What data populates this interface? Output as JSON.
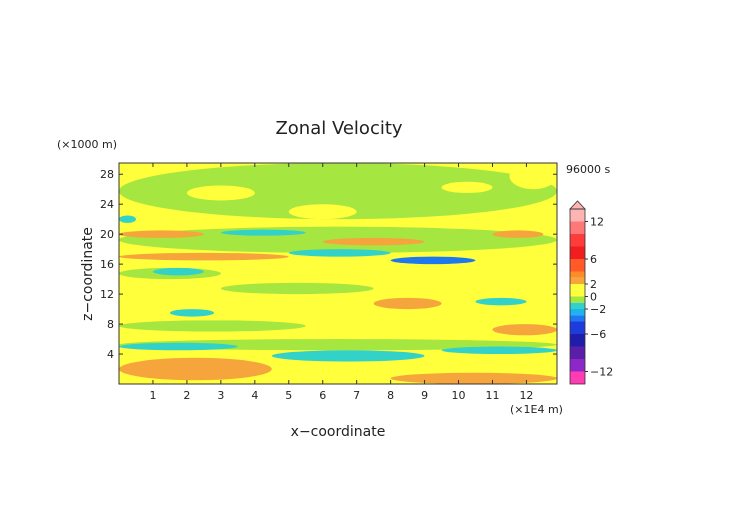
{
  "chart_data": {
    "type": "heatmap",
    "title": "Zonal Velocity",
    "xlabel": "x−coordinate",
    "ylabel": "z−coordinate",
    "x_unit": "(×1E4 m)",
    "y_unit": "(×1000 m)",
    "time_label": "96000 s",
    "xlim": [
      0,
      12.9
    ],
    "ylim": [
      0,
      29.5
    ],
    "x_ticks": [
      "1",
      "2",
      "3",
      "4",
      "5",
      "6",
      "7",
      "8",
      "9",
      "10",
      "11",
      "12"
    ],
    "y_ticks": [
      "4",
      "8",
      "12",
      "16",
      "20",
      "24",
      "28"
    ],
    "background_value": "0 to 2",
    "colorbar": {
      "tick_labels": [
        "12",
        "6",
        "2",
        "0",
        "−2",
        "−6",
        "−12"
      ],
      "tick_values": [
        12,
        6,
        2,
        0,
        -2,
        -6,
        -12
      ],
      "levels": [
        {
          "min": 12,
          "max": 14,
          "color": "#ffb4b4"
        },
        {
          "min": 10,
          "max": 12,
          "color": "#ff7878"
        },
        {
          "min": 8,
          "max": 10,
          "color": "#ff3c3c"
        },
        {
          "min": 6,
          "max": 8,
          "color": "#f01e1e"
        },
        {
          "min": 4,
          "max": 6,
          "color": "#ff5a28"
        },
        {
          "min": 3,
          "max": 4,
          "color": "#ff8c28"
        },
        {
          "min": 2,
          "max": 3,
          "color": "#f5a53c"
        },
        {
          "min": 1,
          "max": 2,
          "color": "#ffff3c"
        },
        {
          "min": 0,
          "max": 1,
          "color": "#ffff3c"
        },
        {
          "min": -1,
          "max": 0,
          "color": "#a6e640"
        },
        {
          "min": -2,
          "max": -1,
          "color": "#32d2c8"
        },
        {
          "min": -3,
          "max": -2,
          "color": "#1eb4f0"
        },
        {
          "min": -4,
          "max": -3,
          "color": "#1e78f0"
        },
        {
          "min": -6,
          "max": -4,
          "color": "#1e3cdc"
        },
        {
          "min": -8,
          "max": -6,
          "color": "#1e1eaa"
        },
        {
          "min": -10,
          "max": -8,
          "color": "#5a1eaa"
        },
        {
          "min": -12,
          "max": -10,
          "color": "#8c28c8"
        },
        {
          "min": -14,
          "max": -12,
          "color": "#ff3cb4"
        }
      ]
    },
    "features": [
      {
        "x0": 0.0,
        "x1": 4.5,
        "z0": 0.5,
        "z1": 3.5,
        "value": 2.5
      },
      {
        "x0": 8.0,
        "x1": 12.9,
        "z0": 0.0,
        "z1": 1.5,
        "value": 2.5
      },
      {
        "x0": 0.0,
        "x1": 12.9,
        "z0": 4.5,
        "z1": 6.0,
        "value": -0.5
      },
      {
        "x0": 0.0,
        "x1": 3.5,
        "z0": 4.5,
        "z1": 5.5,
        "value": -1.5
      },
      {
        "x0": 4.5,
        "x1": 9.0,
        "z0": 3.0,
        "z1": 4.5,
        "value": -1.5
      },
      {
        "x0": 9.5,
        "x1": 12.9,
        "z0": 4.0,
        "z1": 5.0,
        "value": -1.5
      },
      {
        "x0": 0.0,
        "x1": 5.5,
        "z0": 7.0,
        "z1": 8.5,
        "value": -0.5
      },
      {
        "x0": 11.0,
        "x1": 12.9,
        "z0": 6.5,
        "z1": 8.0,
        "value": 2.5
      },
      {
        "x0": 7.5,
        "x1": 9.5,
        "z0": 10.0,
        "z1": 11.5,
        "value": 2.5
      },
      {
        "x0": 10.5,
        "x1": 12.0,
        "z0": 10.5,
        "z1": 11.5,
        "value": -1.5
      },
      {
        "x0": 1.5,
        "x1": 2.8,
        "z0": 9.0,
        "z1": 10.0,
        "value": -1.5
      },
      {
        "x0": 3.0,
        "x1": 7.5,
        "z0": 12.0,
        "z1": 13.5,
        "value": -0.5
      },
      {
        "x0": 0.0,
        "x1": 3.0,
        "z0": 14.0,
        "z1": 15.5,
        "value": -0.5
      },
      {
        "x0": 1.0,
        "x1": 2.5,
        "z0": 14.5,
        "z1": 15.5,
        "value": -1.5
      },
      {
        "x0": 0.0,
        "x1": 5.0,
        "z0": 16.5,
        "z1": 17.5,
        "value": 2.5
      },
      {
        "x0": 8.0,
        "x1": 10.5,
        "z0": 16.0,
        "z1": 17.0,
        "value": -3.5
      },
      {
        "x0": 5.0,
        "x1": 8.0,
        "z0": 17.0,
        "z1": 18.0,
        "value": -1.5
      },
      {
        "x0": 6.0,
        "x1": 9.0,
        "z0": 18.5,
        "z1": 19.5,
        "value": 2.5
      },
      {
        "x0": 0.0,
        "x1": 2.5,
        "z0": 19.5,
        "z1": 20.5,
        "value": 2.5
      },
      {
        "x0": 11.0,
        "x1": 12.5,
        "z0": 19.5,
        "z1": 20.5,
        "value": 2.5
      },
      {
        "x0": 3.0,
        "x1": 5.5,
        "z0": 19.8,
        "z1": 20.6,
        "value": -1.5
      },
      {
        "x0": 0.0,
        "x1": 12.9,
        "z0": 17.5,
        "z1": 21.0,
        "value": -0.5
      },
      {
        "x0": 0.0,
        "x1": 12.9,
        "z0": 22.0,
        "z1": 29.5,
        "value": -0.5
      },
      {
        "x0": 0.0,
        "x1": 0.5,
        "z0": 21.5,
        "z1": 22.5,
        "value": -1.5
      },
      {
        "x0": 2.0,
        "x1": 4.0,
        "z0": 24.5,
        "z1": 26.5,
        "value": 1.5
      },
      {
        "x0": 9.5,
        "x1": 11.0,
        "z0": 25.5,
        "z1": 27.0,
        "value": 1.5
      },
      {
        "x0": 11.5,
        "x1": 12.9,
        "z0": 26.0,
        "z1": 29.5,
        "value": 1.5
      },
      {
        "x0": 5.0,
        "x1": 7.0,
        "z0": 22.0,
        "z1": 24.0,
        "value": 1.5
      },
      {
        "x0": 3.5,
        "x1": 5.5,
        "z0": 10.0,
        "z1": 12.0,
        "value": 1.5
      },
      {
        "x0": 7.0,
        "x1": 12.0,
        "z0": 13.0,
        "z1": 15.0,
        "value": 1.5
      },
      {
        "x0": 1.0,
        "x1": 3.0,
        "z0": 11.0,
        "z1": 13.0,
        "value": 1.5
      }
    ]
  }
}
